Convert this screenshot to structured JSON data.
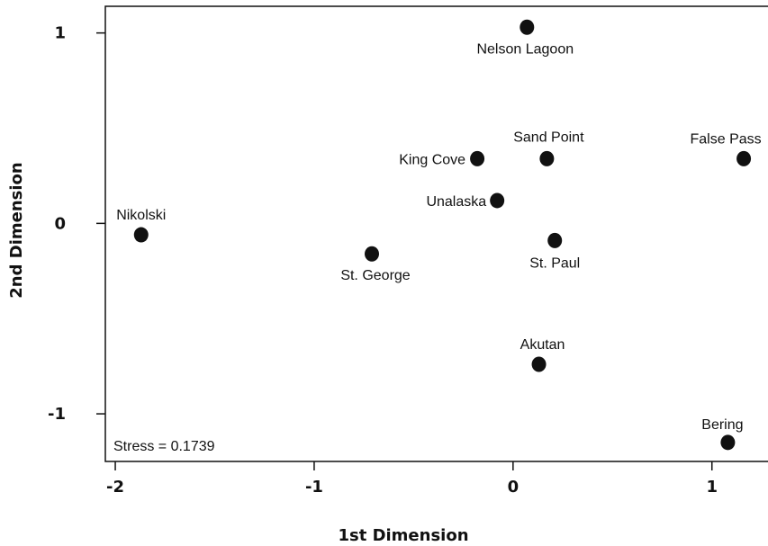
{
  "chart_data": {
    "type": "scatter",
    "xlabel": "1st Dimension",
    "ylabel": "2nd Dimension",
    "xlim": [
      -2.05,
      1.3
    ],
    "ylim": [
      -1.25,
      1.14
    ],
    "xticks": [
      -2,
      -1,
      0,
      1
    ],
    "yticks": [
      -1,
      0,
      1
    ],
    "xtick_labels": [
      "-2",
      "-1",
      "0",
      "1"
    ],
    "ytick_labels": [
      "-1",
      "0",
      "1"
    ],
    "annotation": "Stress = 0.1739",
    "grid": false,
    "points": [
      {
        "label": "Nelson Lagoon",
        "x": 0.07,
        "y": 1.03
      },
      {
        "label": "Sand Point",
        "x": 0.17,
        "y": 0.34
      },
      {
        "label": "False Pass",
        "x": 1.16,
        "y": 0.34
      },
      {
        "label": "King Cove",
        "x": -0.18,
        "y": 0.34
      },
      {
        "label": "Unalaska",
        "x": -0.08,
        "y": 0.12
      },
      {
        "label": "Nikolski",
        "x": -1.87,
        "y": -0.06
      },
      {
        "label": "St. George",
        "x": -0.71,
        "y": -0.16
      },
      {
        "label": "St. Paul",
        "x": 0.21,
        "y": -0.09
      },
      {
        "label": "Akutan",
        "x": 0.13,
        "y": -0.74
      },
      {
        "label": "Bering",
        "x": 1.08,
        "y": -1.15
      }
    ]
  }
}
